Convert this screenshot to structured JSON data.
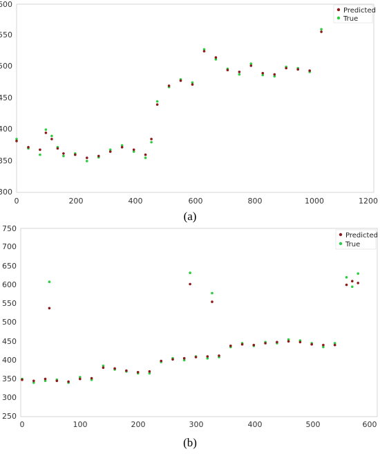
{
  "chart_data": [
    {
      "type": "scatter",
      "caption": "(a)",
      "xlim": [
        0,
        1200
      ],
      "ylim": [
        300,
        600
      ],
      "xticks": [
        "0",
        "200",
        "400",
        "600",
        "800",
        "1000",
        "1200"
      ],
      "yticks": [
        "300",
        "350",
        "400",
        "450",
        "500",
        "550",
        "600"
      ],
      "legend_placement": "top-right",
      "series": [
        {
          "name": "Predicted",
          "color": "#8B1A1A",
          "points": [
            [
              0,
              382
            ],
            [
              40,
              372
            ],
            [
              80,
              368
            ],
            [
              100,
              395
            ],
            [
              120,
              385
            ],
            [
              140,
              370
            ],
            [
              160,
              362
            ],
            [
              200,
              360
            ],
            [
              240,
              355
            ],
            [
              280,
              358
            ],
            [
              320,
              365
            ],
            [
              360,
              372
            ],
            [
              400,
              368
            ],
            [
              440,
              360
            ],
            [
              460,
              385
            ],
            [
              480,
              440
            ],
            [
              520,
              470
            ],
            [
              560,
              478
            ],
            [
              600,
              472
            ],
            [
              640,
              525
            ],
            [
              680,
              515
            ],
            [
              720,
              495
            ],
            [
              760,
              492
            ],
            [
              800,
              502
            ],
            [
              840,
              490
            ],
            [
              880,
              488
            ],
            [
              920,
              498
            ],
            [
              960,
              496
            ],
            [
              1000,
              494
            ],
            [
              1040,
              556
            ]
          ]
        },
        {
          "name": "True",
          "color": "#2ecc40",
          "points": [
            [
              0,
              385
            ],
            [
              40,
              370
            ],
            [
              80,
              360
            ],
            [
              100,
              400
            ],
            [
              120,
              390
            ],
            [
              140,
              372
            ],
            [
              160,
              358
            ],
            [
              200,
              362
            ],
            [
              240,
              350
            ],
            [
              280,
              356
            ],
            [
              320,
              368
            ],
            [
              360,
              375
            ],
            [
              400,
              365
            ],
            [
              440,
              355
            ],
            [
              460,
              380
            ],
            [
              480,
              445
            ],
            [
              520,
              468
            ],
            [
              560,
              480
            ],
            [
              600,
              475
            ],
            [
              640,
              528
            ],
            [
              680,
              512
            ],
            [
              720,
              497
            ],
            [
              760,
              488
            ],
            [
              800,
              505
            ],
            [
              840,
              487
            ],
            [
              880,
              485
            ],
            [
              920,
              500
            ],
            [
              960,
              498
            ],
            [
              1000,
              492
            ],
            [
              1040,
              560
            ]
          ]
        }
      ]
    },
    {
      "type": "scatter",
      "caption": "(b)",
      "xlim": [
        0,
        600
      ],
      "ylim": [
        250,
        750
      ],
      "xticks": [
        "0",
        "100",
        "200",
        "300",
        "400",
        "500",
        "600"
      ],
      "yticks": [
        "250",
        "300",
        "350",
        "400",
        "450",
        "500",
        "550",
        "600",
        "650",
        "700",
        "750"
      ],
      "legend_placement": "top-right",
      "series": [
        {
          "name": "Predicted",
          "color": "#8B1A1A",
          "points": [
            [
              0,
              348
            ],
            [
              20,
              345
            ],
            [
              40,
              350
            ],
            [
              47,
              538
            ],
            [
              60,
              345
            ],
            [
              80,
              343
            ],
            [
              100,
              350
            ],
            [
              120,
              352
            ],
            [
              140,
              380
            ],
            [
              160,
              378
            ],
            [
              180,
              372
            ],
            [
              200,
              368
            ],
            [
              220,
              370
            ],
            [
              240,
              398
            ],
            [
              260,
              402
            ],
            [
              280,
              405
            ],
            [
              290,
              602
            ],
            [
              300,
              408
            ],
            [
              320,
              410
            ],
            [
              328,
              555
            ],
            [
              340,
              412
            ],
            [
              360,
              438
            ],
            [
              380,
              442
            ],
            [
              400,
              440
            ],
            [
              420,
              445
            ],
            [
              440,
              448
            ],
            [
              460,
              450
            ],
            [
              480,
              448
            ],
            [
              500,
              442
            ],
            [
              520,
              440
            ],
            [
              540,
              440
            ],
            [
              560,
              600
            ],
            [
              570,
              610
            ],
            [
              580,
              605
            ]
          ]
        },
        {
          "name": "True",
          "color": "#2ecc40",
          "points": [
            [
              0,
              350
            ],
            [
              20,
              340
            ],
            [
              40,
              345
            ],
            [
              47,
              608
            ],
            [
              60,
              348
            ],
            [
              80,
              340
            ],
            [
              100,
              355
            ],
            [
              120,
              348
            ],
            [
              140,
              385
            ],
            [
              160,
              375
            ],
            [
              180,
              370
            ],
            [
              200,
              365
            ],
            [
              220,
              365
            ],
            [
              240,
              395
            ],
            [
              260,
              405
            ],
            [
              280,
              400
            ],
            [
              290,
              632
            ],
            [
              300,
              410
            ],
            [
              320,
              405
            ],
            [
              328,
              578
            ],
            [
              340,
              408
            ],
            [
              360,
              435
            ],
            [
              380,
              445
            ],
            [
              400,
              438
            ],
            [
              420,
              448
            ],
            [
              440,
              445
            ],
            [
              460,
              455
            ],
            [
              480,
              452
            ],
            [
              500,
              445
            ],
            [
              520,
              435
            ],
            [
              540,
              445
            ],
            [
              560,
              620
            ],
            [
              570,
              595
            ],
            [
              580,
              630
            ]
          ]
        }
      ]
    }
  ]
}
